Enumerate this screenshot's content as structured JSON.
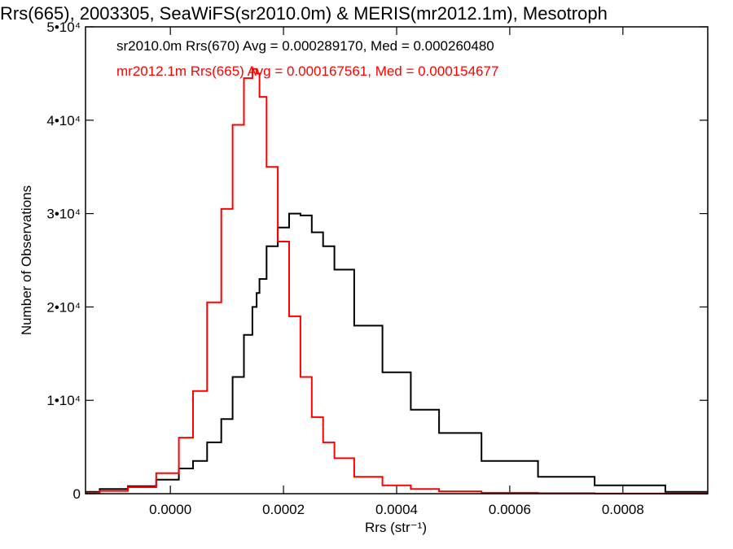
{
  "chart_data": {
    "type": "line",
    "title": "Rrs(665), 2003305, SeaWiFS(sr2010.0m) & MERIS(mr2012.1m), Mesotroph",
    "xlabel": "Rrs (str⁻¹)",
    "ylabel": "Number of Observations",
    "xlim": [
      -0.00015,
      0.00095
    ],
    "ylim": [
      0,
      50000
    ],
    "grid": false,
    "legend_position": "top-left",
    "x_ticks": [
      0.0,
      0.0002,
      0.0004,
      0.0006,
      0.0008
    ],
    "x_tick_labels": [
      "0.0000",
      "0.0002",
      "0.0004",
      "0.0006",
      "0.0008"
    ],
    "y_ticks": [
      0,
      10000,
      20000,
      30000,
      40000,
      50000
    ],
    "y_tick_labels": [
      "0",
      "1•10⁴",
      "2•10⁴",
      "3•10⁴",
      "4•10⁴",
      "5•10⁴"
    ],
    "x": [
      -0.00015,
      -0.0001,
      -5e-05,
      0.0,
      3e-05,
      5e-05,
      8e-05,
      0.0001,
      0.00012,
      0.00014,
      0.00015,
      0.000155,
      0.00016,
      0.00018,
      0.0002,
      0.00022,
      0.00024,
      0.00026,
      0.00028,
      0.0003,
      0.00035,
      0.0004,
      0.00045,
      0.0005,
      0.0006,
      0.0007,
      0.0008,
      0.00095
    ],
    "series": [
      {
        "name": "sr2010.0m",
        "color": "#000000",
        "values": [
          200,
          500,
          800,
          1500,
          2700,
          3500,
          5500,
          8000,
          12500,
          17000,
          20000,
          21500,
          23000,
          26500,
          28500,
          30000,
          29800,
          28000,
          26500,
          24000,
          18000,
          13000,
          9000,
          6500,
          3500,
          1800,
          900,
          200
        ]
      },
      {
        "name": "mr2012.1m",
        "color": "#ff0000",
        "values": [
          100,
          300,
          700,
          2200,
          6000,
          11000,
          20500,
          30500,
          39500,
          44500,
          45500,
          45000,
          42500,
          35000,
          27000,
          19000,
          12500,
          8200,
          5500,
          3800,
          1800,
          900,
          500,
          250,
          100,
          50,
          20,
          5
        ]
      }
    ],
    "legend": [
      {
        "text": "sr2010.0m Rrs(670) Avg = 0.000289170, Med = 0.000260480",
        "color": "#000000"
      },
      {
        "text": "mr2012.1m Rrs(665) Avg = 0.000167561, Med = 0.000154677",
        "color": "#ff0000"
      }
    ]
  }
}
